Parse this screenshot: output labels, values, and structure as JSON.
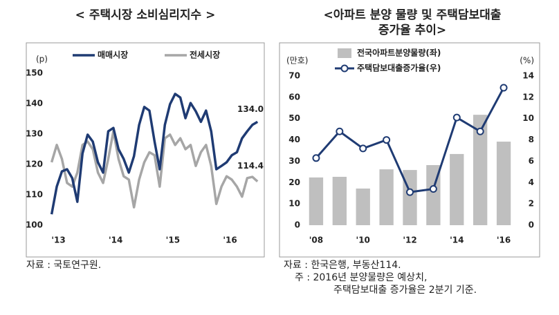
{
  "chart_data": [
    {
      "type": "line",
      "title": "< 주택시장 소비심리지수 >",
      "y_label": "(p)",
      "x": [
        2012.88,
        2012.97,
        2013.06,
        2013.15,
        2013.24,
        2013.33,
        2013.42,
        2013.51,
        2013.6,
        2013.69,
        2013.78,
        2013.87,
        2013.96,
        2014.05,
        2014.14,
        2014.23,
        2014.32,
        2014.41,
        2014.5,
        2014.59,
        2014.68,
        2014.77,
        2014.86,
        2014.95,
        2015.04,
        2015.13,
        2015.22,
        2015.31,
        2015.4,
        2015.49,
        2015.58,
        2015.67,
        2015.76,
        2015.85,
        2015.94,
        2016.03,
        2016.12,
        2016.21,
        2016.3,
        2016.39,
        2016.48
      ],
      "xlim": [
        2012.8,
        2016.55
      ],
      "xticks": [
        {
          "value": 2013,
          "label": "'13"
        },
        {
          "value": 2014,
          "label": "'14"
        },
        {
          "value": 2015,
          "label": "'15"
        },
        {
          "value": 2016,
          "label": "'16"
        }
      ],
      "ylim": [
        100,
        150
      ],
      "yticks": [
        100,
        110,
        120,
        130,
        140,
        150
      ],
      "series": [
        {
          "name": "매매시장",
          "color": "#1f3b73",
          "end_label": "134.0",
          "values": [
            103.6,
            112.7,
            117.7,
            118.4,
            115.5,
            107.7,
            123.6,
            129.8,
            127.5,
            120.7,
            117.3,
            130.9,
            132,
            125,
            121.8,
            117.3,
            122.7,
            133,
            138.9,
            137.7,
            127.5,
            118.4,
            133,
            139.8,
            143.2,
            142,
            135.2,
            140.2,
            137.5,
            134,
            137.7,
            130.9,
            118.4,
            119.5,
            120.7,
            123,
            124,
            128.6,
            130.9,
            133,
            134.0
          ]
        },
        {
          "name": "전세시장",
          "color": "#a6a6a6",
          "end_label": "114.4",
          "values": [
            120.7,
            126.4,
            121.8,
            113.9,
            112.7,
            117.3,
            126.4,
            127.5,
            125,
            117.3,
            113.9,
            121.8,
            130.9,
            121.8,
            116.1,
            115,
            105.9,
            115,
            120.7,
            124,
            123,
            112.7,
            128.6,
            129.8,
            126.4,
            128.6,
            125,
            126.4,
            119.5,
            124,
            126.4,
            119.5,
            107,
            112.7,
            116.1,
            115,
            112.7,
            109.4,
            115.5,
            115.9,
            114.4
          ]
        }
      ],
      "source": [
        "자료 : 국토연구원."
      ]
    },
    {
      "type": "bar_line",
      "title": [
        "<아파트 분양 물량 및 주택담보대출",
        "증가율 추이>"
      ],
      "y_label": "(만호)",
      "y2_label": "(%)",
      "categories": [
        "'08",
        null,
        "'10",
        null,
        "'12",
        null,
        "'14",
        null,
        "'16"
      ],
      "ylim": [
        0,
        70
      ],
      "yticks": [
        0,
        10,
        20,
        30,
        40,
        50,
        60,
        70
      ],
      "y2lim": [
        0,
        14
      ],
      "y2ticks": [
        0,
        2,
        4,
        6,
        8,
        10,
        12,
        14
      ],
      "series": [
        {
          "name": "전국아파트분양물량(좌)",
          "color": "#bfbfbf",
          "values": [
            22.4,
            22.7,
            17.2,
            26.2,
            25.9,
            28.2,
            33.4,
            51.8,
            39.2
          ]
        },
        {
          "name": "주택담보대출증가율(우)",
          "color": "#1f3b73",
          "axis": "y2",
          "values": [
            6.3,
            8.8,
            7.2,
            8.0,
            3.1,
            3.4,
            10.1,
            8.8,
            12.9
          ]
        }
      ],
      "source": [
        "자료 : 한국은행, 부동산114.",
        "주 : 2016년 분양물량은 예상치,",
        "주택담보대출 증가율은 2분기 기준."
      ]
    }
  ]
}
